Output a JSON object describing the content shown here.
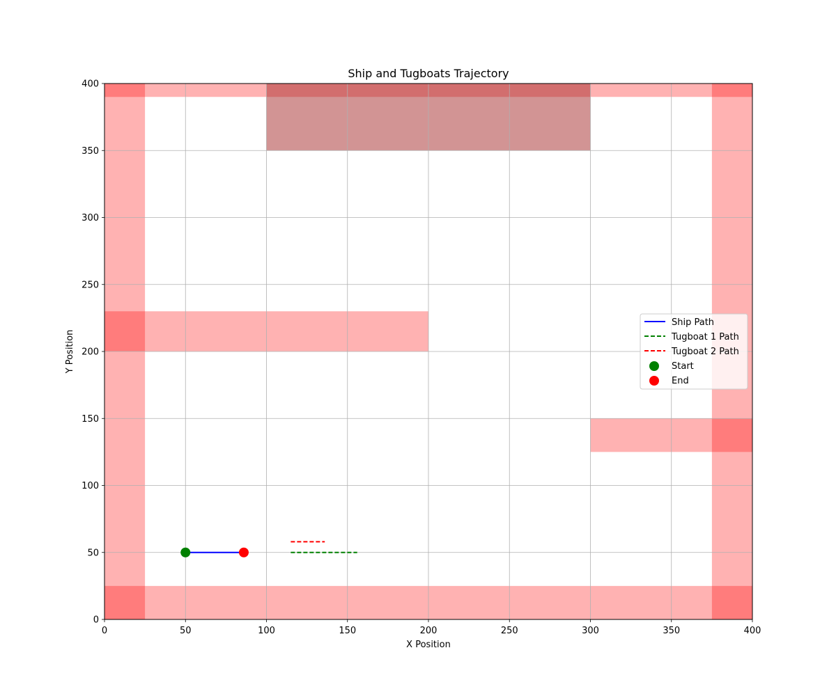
{
  "chart_data": {
    "type": "line",
    "title": "Ship and Tugboats Trajectory",
    "xlabel": "X Position",
    "ylabel": "Y Position",
    "xlim": [
      0,
      400
    ],
    "ylim": [
      0,
      400
    ],
    "xticks": [
      0,
      50,
      100,
      150,
      200,
      250,
      300,
      350,
      400
    ],
    "yticks": [
      0,
      50,
      100,
      150,
      200,
      250,
      300,
      350,
      400
    ],
    "grid": true,
    "legend_position": "center-right",
    "obstacles": [
      {
        "x": [
          0,
          25
        ],
        "y": [
          0,
          400
        ],
        "color": "#ff0000",
        "opacity": 0.3
      },
      {
        "x": [
          375,
          400
        ],
        "y": [
          0,
          400
        ],
        "color": "#ff0000",
        "opacity": 0.3
      },
      {
        "x": [
          0,
          400
        ],
        "y": [
          0,
          25
        ],
        "color": "#ff0000",
        "opacity": 0.3
      },
      {
        "x": [
          0,
          400
        ],
        "y": [
          390,
          400
        ],
        "color": "#ff0000",
        "opacity": 0.3
      },
      {
        "x": [
          0,
          200
        ],
        "y": [
          200,
          230
        ],
        "color": "#ff0000",
        "opacity": 0.3
      },
      {
        "x": [
          300,
          400
        ],
        "y": [
          125,
          150
        ],
        "color": "#ff0000",
        "opacity": 0.3
      },
      {
        "x": [
          100,
          300
        ],
        "y": [
          350,
          400
        ],
        "color": "#a52a2a",
        "opacity": 0.5
      }
    ],
    "series": [
      {
        "name": "Ship Path",
        "color": "#0000ff",
        "style": "solid",
        "x": [
          50,
          86
        ],
        "y": [
          50,
          50
        ]
      },
      {
        "name": "Tugboat 1 Path",
        "color": "#008000",
        "style": "dashed",
        "x": [
          115,
          156
        ],
        "y": [
          50,
          50
        ]
      },
      {
        "name": "Tugboat 2 Path",
        "color": "#ff0000",
        "style": "dashed",
        "x": [
          115,
          136
        ],
        "y": [
          58,
          58
        ]
      }
    ],
    "markers": [
      {
        "name": "Start",
        "color": "#008000",
        "x": 50,
        "y": 50
      },
      {
        "name": "End",
        "color": "#ff0000",
        "x": 86,
        "y": 50
      }
    ]
  }
}
